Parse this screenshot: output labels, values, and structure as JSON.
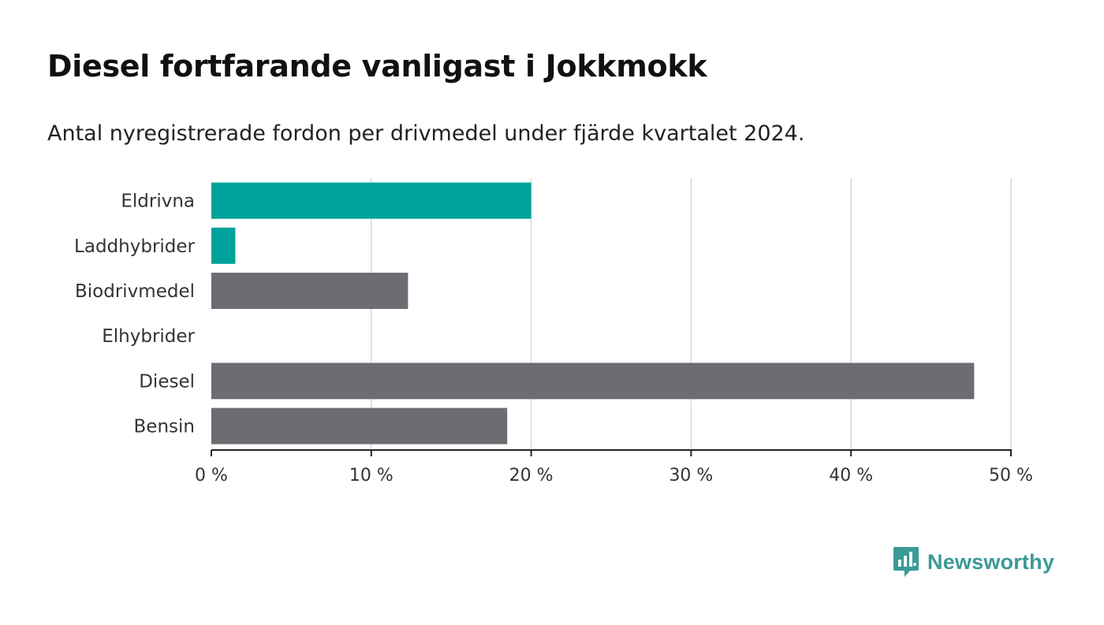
{
  "header": {
    "title": "Diesel fortfarande vanligast i Jokkmokk",
    "subtitle": "Antal nyregistrerade fordon per drivmedel under fjärde kvartalet 2024."
  },
  "chart_data": {
    "type": "bar",
    "orientation": "horizontal",
    "categories": [
      "Eldrivna",
      "Laddhybrider",
      "Biodrivmedel",
      "Elhybrider",
      "Diesel",
      "Bensin"
    ],
    "values": [
      20.0,
      1.5,
      12.3,
      0,
      47.7,
      18.5
    ],
    "bar_colors": [
      "#00a39a",
      "#00a39a",
      "#6d6c72",
      "#6d6c72",
      "#6d6c72",
      "#6d6c72"
    ],
    "xlim": [
      0,
      50
    ],
    "xticks": [
      0,
      10,
      20,
      30,
      40,
      50
    ],
    "xtick_labels": [
      "0 %",
      "10 %",
      "20 %",
      "30 %",
      "40 %",
      "50 %"
    ],
    "xlabel": "",
    "ylabel": "",
    "grid": "vertical"
  },
  "brand": {
    "name": "Newsworthy",
    "icon": "newsworthy-logo-icon",
    "color": "#3a9a96"
  }
}
